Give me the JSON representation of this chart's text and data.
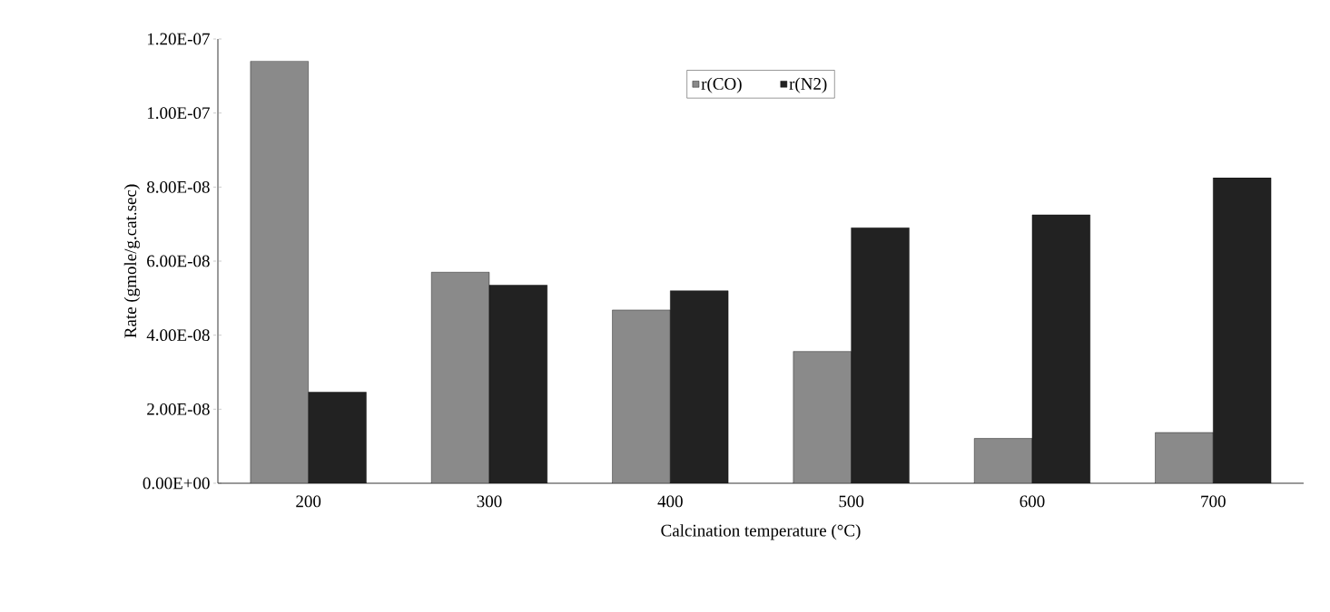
{
  "chart_data": {
    "type": "bar",
    "xlabel": "Calcination temperature (°C)",
    "ylabel": "Rate (gmole/g.cat.sec)",
    "categories": [
      "200",
      "300",
      "400",
      "500",
      "600",
      "700"
    ],
    "series": [
      {
        "name": "r(CO)",
        "color": "#8a8a8a",
        "values": [
          1.14e-07,
          5.7e-08,
          4.68e-08,
          3.56e-08,
          1.21e-08,
          1.37e-08
        ]
      },
      {
        "name": "r(N2)",
        "color": "#222222",
        "values": [
          2.46e-08,
          5.35e-08,
          5.2e-08,
          6.9e-08,
          7.25e-08,
          8.25e-08
        ]
      }
    ],
    "ylim": [
      0,
      1.2e-07
    ],
    "yticks": [
      {
        "value": 0,
        "label": "0.00E+00"
      },
      {
        "value": 2e-08,
        "label": "2.00E-08"
      },
      {
        "value": 4e-08,
        "label": "4.00E-08"
      },
      {
        "value": 6e-08,
        "label": "6.00E-08"
      },
      {
        "value": 8e-08,
        "label": "8.00E-08"
      },
      {
        "value": 1e-07,
        "label": "1.00E-07"
      },
      {
        "value": 1.2e-07,
        "label": "1.20E-07"
      }
    ],
    "grid": false,
    "legend": "top"
  }
}
